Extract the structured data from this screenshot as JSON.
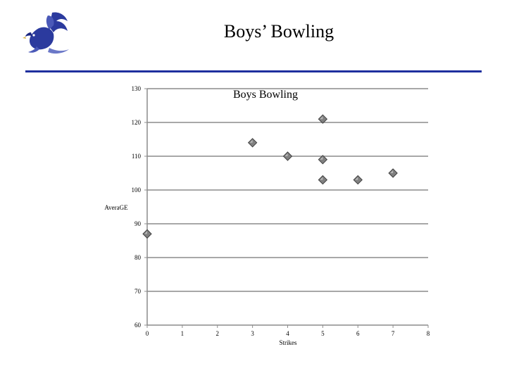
{
  "slide": {
    "title": "Boys’ Bowling",
    "accent_color": "#1f2f9e",
    "logo_icon": "eagle-logo-icon"
  },
  "chart_data": {
    "type": "scatter",
    "title": "Boys Bowling",
    "xlabel": "Strikes",
    "ylabel": "AveraGE",
    "xlim": [
      0,
      8
    ],
    "ylim": [
      60,
      130
    ],
    "x_ticks": [
      0,
      1,
      2,
      3,
      4,
      5,
      6,
      7,
      8
    ],
    "y_ticks": [
      60,
      70,
      80,
      90,
      100,
      110,
      120,
      130
    ],
    "grid": "horizontal",
    "legend": "none",
    "marker": "diamond",
    "marker_color": "#808080",
    "points": [
      {
        "x": 0,
        "y": 87
      },
      {
        "x": 3,
        "y": 114
      },
      {
        "x": 4,
        "y": 110
      },
      {
        "x": 5,
        "y": 121
      },
      {
        "x": 5,
        "y": 109
      },
      {
        "x": 5,
        "y": 103
      },
      {
        "x": 6,
        "y": 103
      },
      {
        "x": 7,
        "y": 105
      }
    ]
  }
}
